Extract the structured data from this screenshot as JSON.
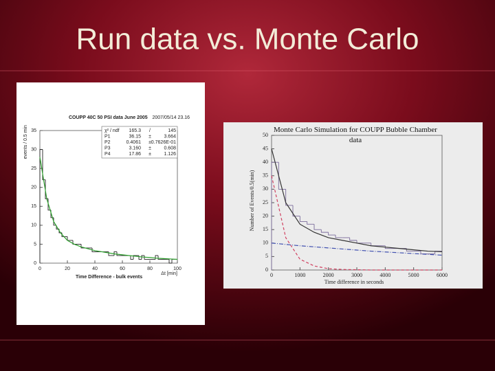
{
  "title": "Run data vs. Monte Carlo",
  "chart_data": [
    {
      "type": "histogram",
      "title": "COUPP 40C 50 PSI data   June 2005",
      "timestamp": "2007/05/14  23.16",
      "x_label": "Time Difference - bulk events",
      "x_unit": "Δt [min]",
      "y_label": "events / 0.5 min",
      "bins": [
        0,
        2,
        4,
        6,
        8,
        10,
        12,
        14,
        16,
        18,
        20,
        22,
        24,
        26,
        28,
        30,
        32,
        34,
        36,
        38,
        40,
        42,
        44,
        46,
        48,
        50,
        52,
        54,
        56,
        58,
        60,
        62,
        64,
        66,
        68,
        70,
        72,
        74,
        76,
        78,
        80,
        82,
        84,
        86,
        88,
        90,
        92,
        94,
        96,
        98,
        100
      ],
      "values": [
        30,
        22,
        17,
        14,
        12,
        10,
        9,
        8,
        7,
        7,
        6,
        6,
        5,
        5,
        5,
        4,
        4,
        4,
        4,
        3,
        3,
        3,
        3,
        3,
        3,
        2,
        2,
        3,
        2,
        2,
        2,
        2,
        2,
        1,
        2,
        2,
        1,
        2,
        1,
        1,
        1,
        1,
        2,
        1,
        1,
        1,
        1,
        0,
        1,
        1
      ],
      "color": "#202020",
      "fit_x": [
        0,
        5,
        10,
        15,
        20,
        25,
        30,
        35,
        40,
        45,
        50,
        55,
        60,
        65,
        70,
        75,
        80,
        85,
        90,
        95,
        100
      ],
      "fits": [
        {
          "color": "#2ca02c",
          "dash": "none",
          "values": [
            28,
            17,
            11,
            8,
            6,
            5,
            4.3,
            3.8,
            3.3,
            3,
            2.7,
            2.4,
            2.2,
            2,
            1.8,
            1.6,
            1.5,
            1.3,
            1.2,
            1.1,
            1
          ]
        }
      ],
      "stats": [
        [
          "χ² / ndf",
          "165.3",
          "/",
          "145"
        ],
        [
          "P1",
          "36.15",
          "±",
          "3.664"
        ],
        [
          "P2",
          "0.4061",
          "±",
          "0.7626E-01"
        ],
        [
          "P3",
          "3.160",
          "±",
          "0.608"
        ],
        [
          "P4",
          "17.86",
          "±",
          "1.126"
        ]
      ],
      "xlim": [
        0,
        100
      ],
      "xticks": [
        0,
        20,
        40,
        60,
        80,
        100
      ],
      "ylim": [
        0,
        35
      ],
      "yticks": [
        0,
        5,
        10,
        15,
        20,
        25,
        30,
        35
      ]
    },
    {
      "type": "histogram",
      "title": "Monte Carlo Simulation for COUPP Bubble Chamber data",
      "x_label": "Time difference in seconds",
      "y_label": "Number of Events/0.5(min)",
      "bins": [
        0,
        250,
        500,
        750,
        1000,
        1250,
        1500,
        1750,
        2000,
        2250,
        2500,
        2750,
        3000,
        3250,
        3500,
        3750,
        4000,
        4250,
        4500,
        4750,
        5000,
        5250,
        5500,
        5750,
        6000
      ],
      "values": [
        40,
        30,
        24,
        20,
        18,
        17,
        15,
        14,
        13,
        12,
        12,
        11,
        10,
        10,
        9,
        9,
        8,
        8,
        8,
        7,
        7,
        6,
        6,
        7
      ],
      "color": "#7a6a9a",
      "fit_x": [
        0,
        500,
        1000,
        1500,
        2000,
        2500,
        3000,
        3500,
        4000,
        4500,
        5000,
        5500,
        6000
      ],
      "fits": [
        {
          "color": "#333333",
          "dash": "none",
          "values": [
            45,
            25,
            17,
            14,
            12,
            11,
            10,
            9,
            8.5,
            8,
            7.5,
            7,
            6.8
          ]
        },
        {
          "color": "#d04060",
          "dash": "4 3",
          "values": [
            35,
            12,
            4,
            1.5,
            0.5,
            0.2,
            0.1,
            0,
            0,
            0,
            0,
            0,
            0
          ]
        },
        {
          "color": "#4050b0",
          "dash": "6 2 1 2",
          "values": [
            10,
            9.5,
            9,
            8.6,
            8.2,
            7.8,
            7.4,
            7,
            6.7,
            6.4,
            6.1,
            5.8,
            5.5
          ]
        }
      ],
      "xlim": [
        0,
        6000
      ],
      "xticks": [
        0,
        1000,
        2000,
        3000,
        4000,
        5000,
        6000
      ],
      "ylim": [
        0,
        50
      ],
      "yticks": [
        0,
        5,
        10,
        15,
        20,
        25,
        30,
        35,
        40,
        45,
        50
      ]
    }
  ]
}
